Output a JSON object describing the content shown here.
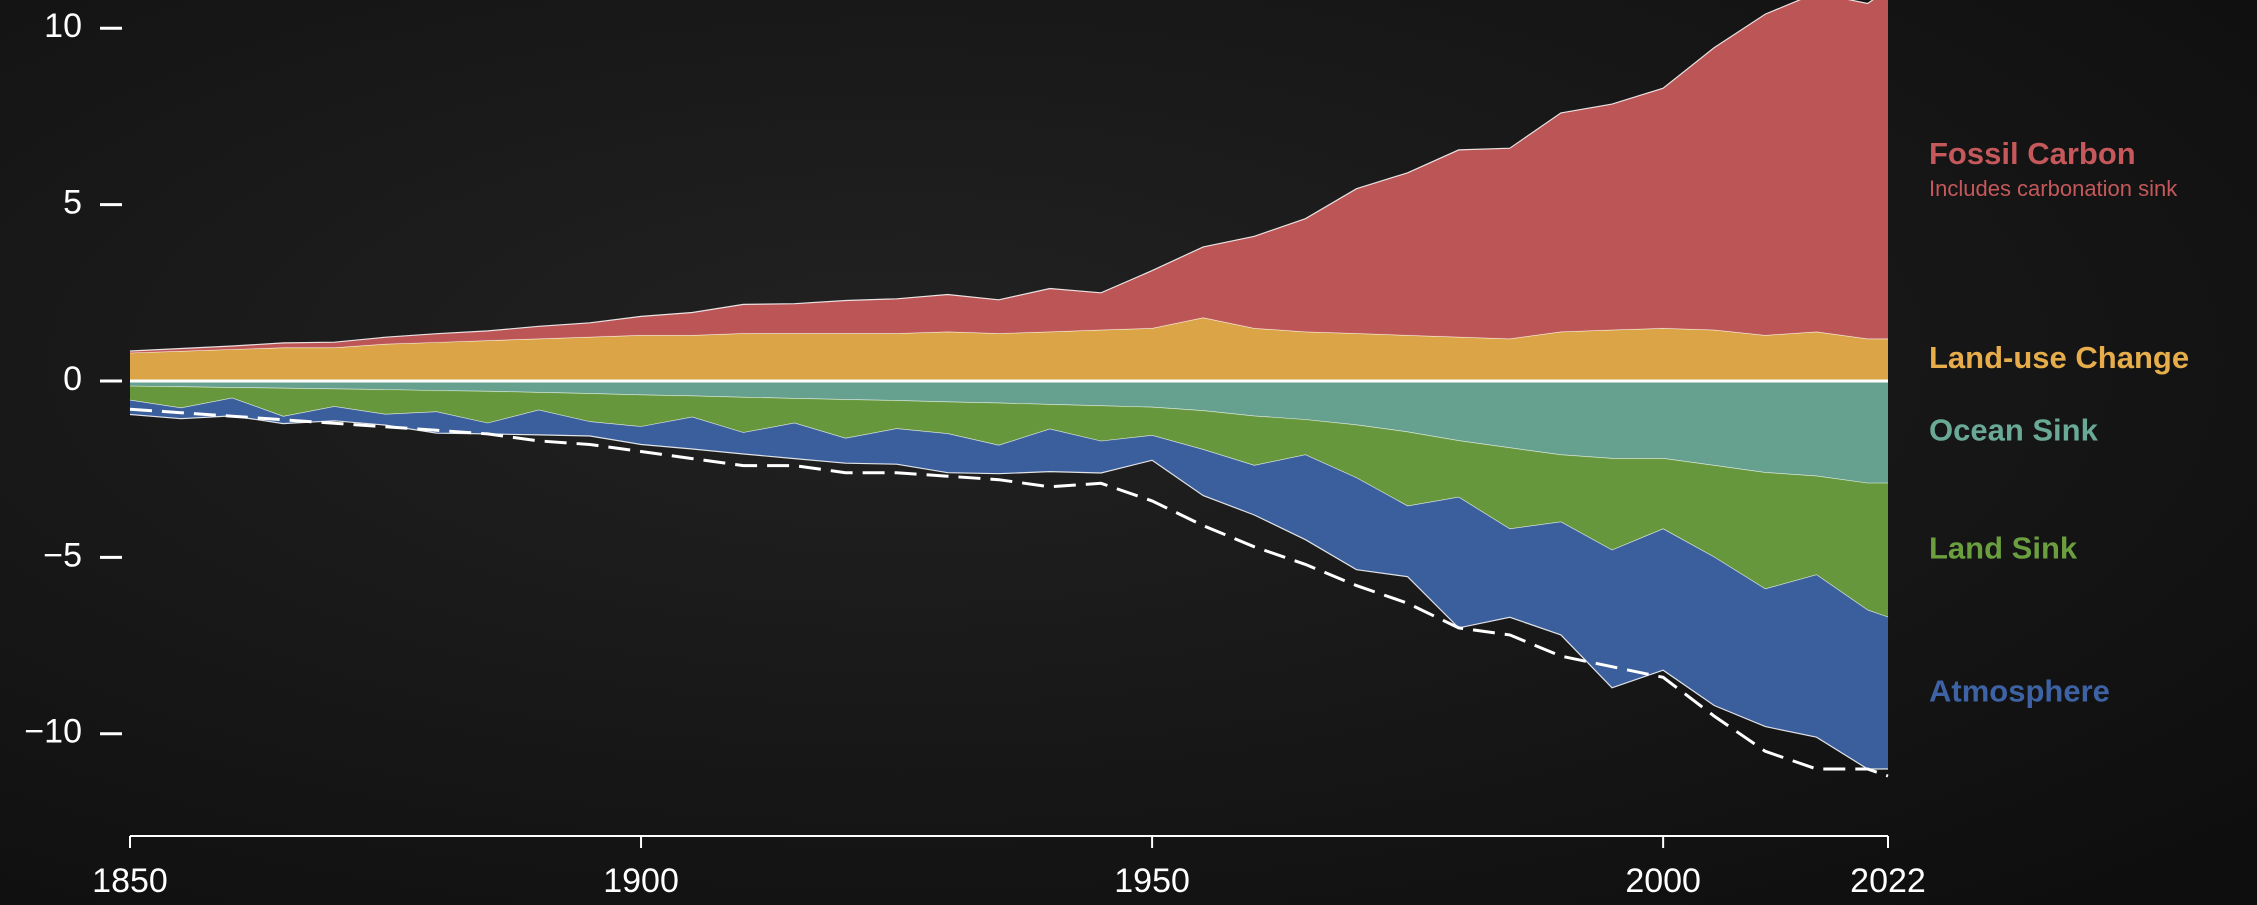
{
  "chart_data": {
    "type": "stacked_area",
    "x": [
      1850,
      1855,
      1860,
      1865,
      1870,
      1875,
      1880,
      1885,
      1890,
      1895,
      1900,
      1905,
      1910,
      1915,
      1920,
      1925,
      1930,
      1935,
      1940,
      1945,
      1950,
      1955,
      1960,
      1965,
      1970,
      1975,
      1980,
      1985,
      1990,
      1995,
      2000,
      2005,
      2010,
      2015,
      2020,
      2022
    ],
    "xlim": [
      1850,
      2022
    ],
    "xticks": [
      1850,
      1900,
      1950,
      2000,
      2022
    ],
    "ylim": [
      -12.9,
      10.8
    ],
    "yticks": [
      10,
      5,
      0,
      {
        "value": -5,
        "label": "−5"
      },
      {
        "value": -10,
        "label": "−10"
      }
    ],
    "series": [
      {
        "name": "Land-use Change",
        "color": "#e6ad4a",
        "values": [
          0.8,
          0.85,
          0.9,
          0.95,
          0.95,
          1.05,
          1.1,
          1.15,
          1.2,
          1.25,
          1.3,
          1.3,
          1.35,
          1.35,
          1.35,
          1.35,
          1.4,
          1.35,
          1.4,
          1.45,
          1.5,
          1.8,
          1.5,
          1.4,
          1.35,
          1.3,
          1.25,
          1.2,
          1.4,
          1.45,
          1.5,
          1.45,
          1.3,
          1.4,
          1.2,
          1.2
        ]
      },
      {
        "name": "Fossil Carbon",
        "note": "Includes carbonation sink",
        "color": "#c4585a",
        "values": [
          0.05,
          0.07,
          0.09,
          0.13,
          0.15,
          0.19,
          0.24,
          0.27,
          0.35,
          0.4,
          0.53,
          0.64,
          0.82,
          0.84,
          0.93,
          0.98,
          1.05,
          0.95,
          1.22,
          1.05,
          1.63,
          2.0,
          2.6,
          3.2,
          4.1,
          4.6,
          5.3,
          5.4,
          6.2,
          6.4,
          6.8,
          8.0,
          9.1,
          9.6,
          9.5,
          9.9
        ]
      },
      {
        "name": "Ocean Sink",
        "color": "#6aa996",
        "values": [
          -0.15,
          -0.17,
          -0.19,
          -0.21,
          -0.23,
          -0.25,
          -0.28,
          -0.3,
          -0.33,
          -0.36,
          -0.4,
          -0.43,
          -0.47,
          -0.5,
          -0.53,
          -0.56,
          -0.6,
          -0.63,
          -0.67,
          -0.71,
          -0.75,
          -0.85,
          -1.0,
          -1.1,
          -1.25,
          -1.45,
          -1.7,
          -1.9,
          -2.1,
          -2.2,
          -2.2,
          -2.4,
          -2.6,
          -2.7,
          -2.9,
          -2.9
        ]
      },
      {
        "name": "Land Sink",
        "color": "#6b9e3f",
        "values": [
          -0.4,
          -0.6,
          -0.3,
          -0.8,
          -0.5,
          -0.7,
          -0.6,
          -0.9,
          -0.5,
          -0.8,
          -0.9,
          -0.6,
          -1.0,
          -0.7,
          -1.1,
          -0.8,
          -0.9,
          -1.2,
          -0.7,
          -1.0,
          -0.8,
          -1.1,
          -1.4,
          -1.0,
          -1.5,
          -2.1,
          -1.6,
          -2.3,
          -1.9,
          -2.6,
          -2.0,
          -2.6,
          -3.3,
          -2.8,
          -3.6,
          -3.8
        ]
      },
      {
        "name": "Atmosphere",
        "color": "#3d63a4",
        "values": [
          -0.4,
          -0.3,
          -0.5,
          -0.2,
          -0.4,
          -0.3,
          -0.6,
          -0.3,
          -0.7,
          -0.4,
          -0.5,
          -0.9,
          -0.6,
          -1.0,
          -0.7,
          -1.0,
          -1.1,
          -0.8,
          -1.2,
          -0.9,
          -0.7,
          -1.3,
          -1.4,
          -2.4,
          -2.6,
          -2.0,
          -3.7,
          -2.5,
          -3.2,
          -3.9,
          -4.0,
          -4.2,
          -3.9,
          -4.6,
          -4.5,
          -4.3
        ]
      }
    ],
    "dashed_line": {
      "color": "#ffffff",
      "values": [
        -0.8,
        -0.9,
        -1.0,
        -1.1,
        -1.2,
        -1.3,
        -1.4,
        -1.5,
        -1.7,
        -1.8,
        -2.0,
        -2.2,
        -2.4,
        -2.4,
        -2.6,
        -2.6,
        -2.7,
        -2.8,
        -3.0,
        -2.9,
        -3.4,
        -4.1,
        -4.7,
        -5.2,
        -5.8,
        -6.3,
        -7.0,
        -7.2,
        -7.8,
        -8.1,
        -8.4,
        -9.5,
        -10.5,
        -11.0,
        -11.0,
        -11.2
      ]
    }
  }
}
